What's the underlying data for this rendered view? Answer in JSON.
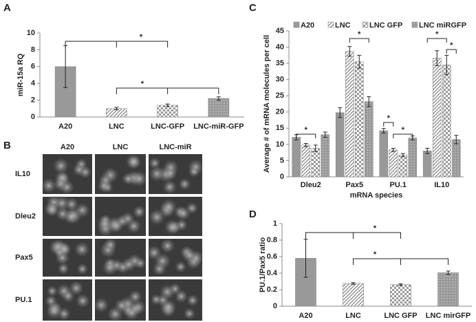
{
  "chart_data": [
    {
      "type": "bar",
      "panel": "A",
      "ylabel": "miR-15a  RQ",
      "categories": [
        "A20",
        "LNC",
        "LNC-GFP",
        "LNC-miR-GFP"
      ],
      "values": [
        6.0,
        1.0,
        1.4,
        2.2
      ],
      "errors": [
        2.5,
        0.15,
        0.15,
        0.2
      ],
      "patterns": [
        "solid",
        "diagonal",
        "checker",
        "dots"
      ],
      "color": "#999999",
      "ylim": [
        0,
        10
      ],
      "yticks": [
        0,
        2,
        4,
        6,
        8,
        10
      ],
      "annotations": [
        "*",
        "*"
      ]
    },
    {
      "type": "grouped_bar",
      "panel": "C",
      "ylabel": "Average # of mRNA molecules per cell",
      "xlabel": "mRNA species",
      "categories": [
        "Dleu2",
        "Pax5",
        "PU.1",
        "IL10"
      ],
      "series": [
        {
          "name": "A20",
          "color": "#999999",
          "pattern": "solid",
          "values": [
            12.2,
            19.8,
            14.2,
            8.0
          ],
          "errors": [
            0.8,
            1.5,
            0.7,
            0.8
          ]
        },
        {
          "name": "LNC",
          "color": "#999999",
          "pattern": "diagonal",
          "values": [
            9.8,
            38.7,
            8.3,
            36.6
          ],
          "errors": [
            0.5,
            1.5,
            0.5,
            2.3
          ]
        },
        {
          "name": "LNC GFP",
          "color": "#999999",
          "pattern": "checker",
          "values": [
            8.8,
            35.5,
            6.7,
            34.5
          ],
          "errors": [
            1.0,
            2.0,
            0.5,
            3.0
          ]
        },
        {
          "name": "LNC miRGFP",
          "color": "#999999",
          "pattern": "dots",
          "values": [
            13.0,
            23.2,
            12.0,
            11.5
          ],
          "errors": [
            0.8,
            1.5,
            0.6,
            1.3
          ]
        }
      ],
      "ylim": [
        0,
        45
      ],
      "yticks": [
        0,
        5,
        10,
        15,
        20,
        25,
        30,
        35,
        40,
        45
      ],
      "legend": "top",
      "annotations": [
        "*",
        "*",
        "*",
        "*",
        "*",
        "*"
      ]
    },
    {
      "type": "bar",
      "panel": "D",
      "ylabel": "PU.1/Pax5 ratio",
      "categories": [
        "A20",
        "LNC",
        "LNC GFP",
        "LNC mirGFP"
      ],
      "values": [
        0.58,
        0.275,
        0.26,
        0.405
      ],
      "errors": [
        0.23,
        0.01,
        0.01,
        0.02
      ],
      "patterns": [
        "solid",
        "diagonal",
        "checker",
        "dots"
      ],
      "color": "#999999",
      "ylim": [
        0,
        1
      ],
      "yticks": [
        0,
        0.2,
        0.4,
        0.6,
        0.8,
        1
      ],
      "annotations": [
        "*",
        "*"
      ]
    }
  ],
  "micrographs": {
    "panel": "B",
    "columns": [
      "A20",
      "LNC",
      "LNC-miR"
    ],
    "rows": [
      "IL10",
      "Dleu2",
      "Pax5",
      "PU.1"
    ]
  }
}
